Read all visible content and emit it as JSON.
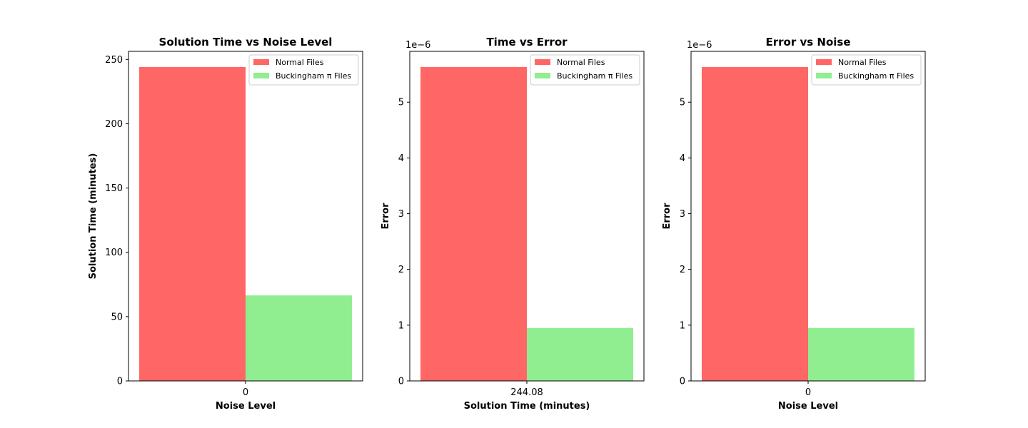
{
  "colors": {
    "normal": "#ff6666",
    "buckingham": "#90ee90"
  },
  "chart_data": [
    {
      "type": "bar",
      "title": "Solution Time vs Noise Level",
      "xlabel": "Noise Level",
      "ylabel": "Solution Time (minutes)",
      "categories": [
        "0"
      ],
      "series": [
        {
          "name": "Normal Files",
          "values": [
            244.08
          ],
          "color": "#ff6666"
        },
        {
          "name": "Buckingham π Files",
          "values": [
            66.5
          ],
          "color": "#90ee90"
        }
      ],
      "ylim": [
        0,
        256.28
      ],
      "yticks": [
        0,
        50,
        100,
        150,
        200,
        250
      ],
      "ytick_labels": [
        "0",
        "50",
        "100",
        "150",
        "200",
        "250"
      ],
      "offset_text": "",
      "legend": "top-right",
      "grid": false
    },
    {
      "type": "bar",
      "title": "Time vs Error",
      "xlabel": "Solution Time (minutes)",
      "ylabel": "Error",
      "categories": [
        "244.08"
      ],
      "series": [
        {
          "name": "Normal Files",
          "values": [
            5.63e-06
          ],
          "color": "#ff6666"
        },
        {
          "name": "Buckingham π Files",
          "values": [
            9.5e-07
          ],
          "color": "#90ee90"
        }
      ],
      "ylim": [
        0,
        5.9115e-06
      ],
      "yticks": [
        0,
        1e-06,
        2e-06,
        3e-06,
        4e-06,
        5e-06
      ],
      "ytick_labels": [
        "0",
        "1",
        "2",
        "3",
        "4",
        "5"
      ],
      "offset_text": "1e−6",
      "legend": "top-right",
      "grid": false
    },
    {
      "type": "bar",
      "title": "Error vs Noise",
      "xlabel": "Noise Level",
      "ylabel": "Error",
      "categories": [
        "0"
      ],
      "series": [
        {
          "name": "Normal Files",
          "values": [
            5.63e-06
          ],
          "color": "#ff6666"
        },
        {
          "name": "Buckingham π Files",
          "values": [
            9.5e-07
          ],
          "color": "#90ee90"
        }
      ],
      "ylim": [
        0,
        5.9115e-06
      ],
      "yticks": [
        0,
        1e-06,
        2e-06,
        3e-06,
        4e-06,
        5e-06
      ],
      "ytick_labels": [
        "0",
        "1",
        "2",
        "3",
        "4",
        "5"
      ],
      "offset_text": "1e−6",
      "legend": "top-right",
      "grid": false
    }
  ]
}
